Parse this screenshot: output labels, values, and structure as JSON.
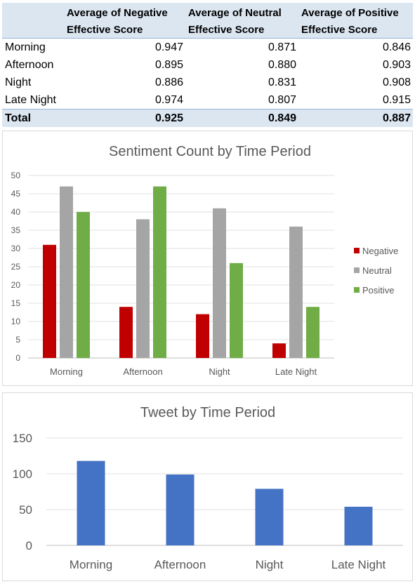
{
  "pivot": {
    "headers": [
      "Average of Negative\nEffective Score",
      "Average of Neutral\nEffective Score",
      "Average of Positive\nEffective Score"
    ],
    "rows": [
      {
        "label": "Morning",
        "values": [
          "0.947",
          "0.871",
          "0.846"
        ]
      },
      {
        "label": "Afternoon",
        "values": [
          "0.895",
          "0.880",
          "0.903"
        ]
      },
      {
        "label": "Night",
        "values": [
          "0.886",
          "0.831",
          "0.908"
        ]
      },
      {
        "label": "Late Night",
        "values": [
          "0.974",
          "0.807",
          "0.915"
        ]
      }
    ],
    "total": {
      "label": "Total",
      "values": [
        "0.925",
        "0.849",
        "0.887"
      ]
    }
  },
  "chart_data": [
    {
      "type": "bar",
      "title": "Sentiment Count by Time Period",
      "categories": [
        "Morning",
        "Afternoon",
        "Night",
        "Late Night"
      ],
      "series": [
        {
          "name": "Negative",
          "values": [
            31,
            14,
            12,
            4
          ],
          "color": "#c00000"
        },
        {
          "name": "Neutral",
          "values": [
            47,
            38,
            41,
            36
          ],
          "color": "#a5a5a5"
        },
        {
          "name": "Positive",
          "values": [
            40,
            47,
            26,
            14
          ],
          "color": "#70ad47"
        }
      ],
      "ylim": [
        0,
        50
      ],
      "yticks": [
        0,
        5,
        10,
        15,
        20,
        25,
        30,
        35,
        40,
        45,
        50
      ],
      "grid": true,
      "legend": "right"
    },
    {
      "type": "bar",
      "title": "Tweet by Time Period",
      "categories": [
        "Morning",
        "Afternoon",
        "Night",
        "Late Night"
      ],
      "values": [
        118,
        99,
        79,
        54
      ],
      "color": "#4472c4",
      "ylim": [
        0,
        150
      ],
      "yticks": [
        0,
        50,
        100,
        150
      ],
      "grid": true
    }
  ]
}
